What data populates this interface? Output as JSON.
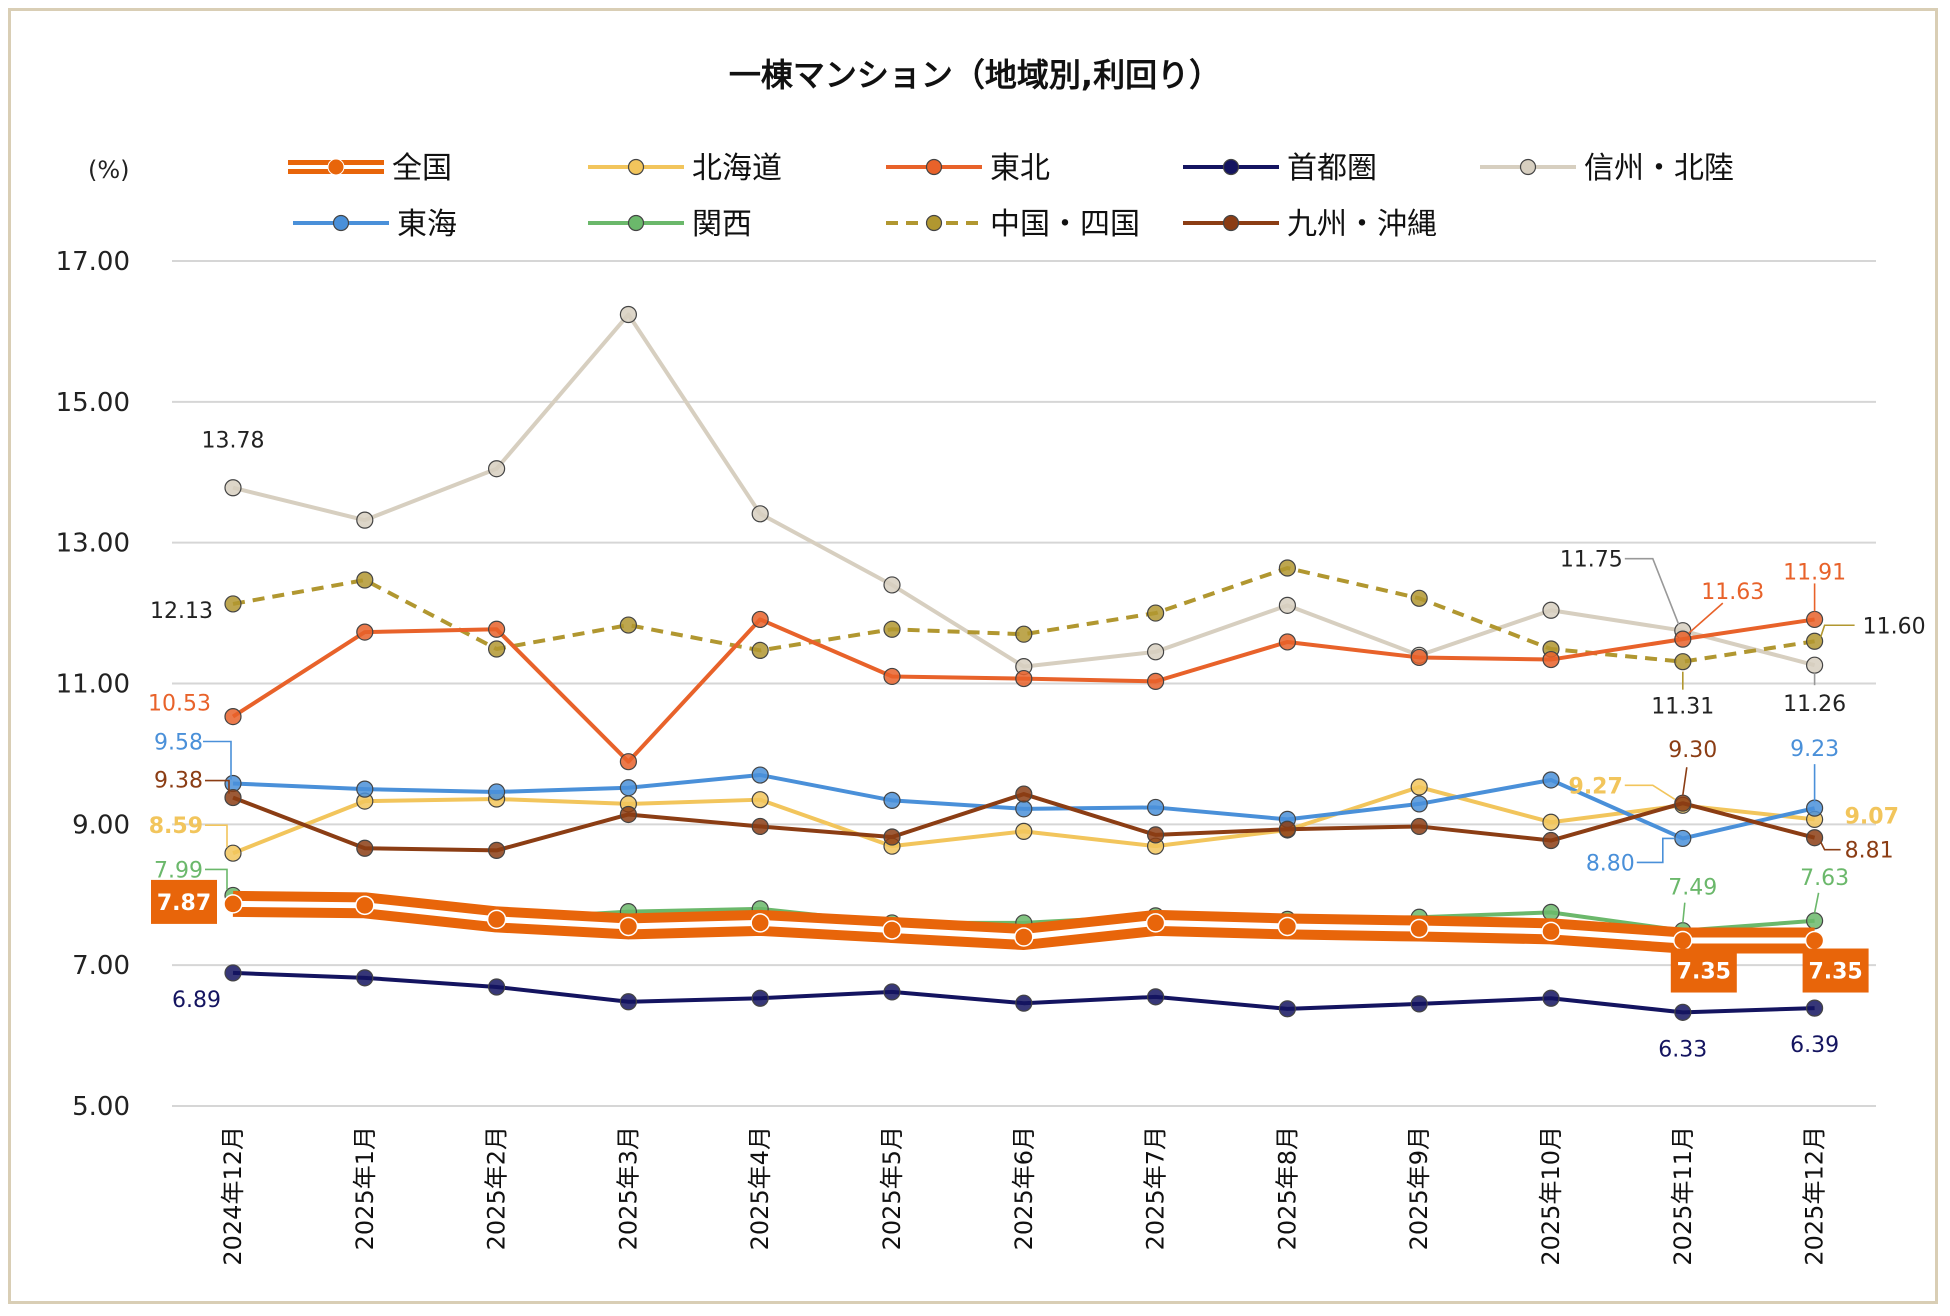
{
  "chart_data": {
    "type": "line",
    "title": "一棟マンション（地域別,利回り）",
    "y_unit_label": "(%)",
    "ylim": [
      5,
      17
    ],
    "yticks": [
      "17.00",
      "15.00",
      "13.00",
      "11.00",
      "9.00",
      "7.00",
      "5.00"
    ],
    "ytick_values": [
      17,
      15,
      13,
      11,
      9,
      7,
      5
    ],
    "grid": true,
    "legend_position": "top",
    "categories": [
      "2024年12月",
      "2025年1月",
      "2025年2月",
      "2025年3月",
      "2025年4月",
      "2025年5月",
      "2025年6月",
      "2025年7月",
      "2025年8月",
      "2025年9月",
      "2025年10月",
      "2025年11月",
      "2025年12月"
    ],
    "series": [
      {
        "name": "全国",
        "color": "#e8650a",
        "style": "double",
        "values": [
          7.87,
          7.85,
          7.65,
          7.55,
          7.6,
          7.5,
          7.4,
          7.6,
          7.55,
          7.52,
          7.48,
          7.35,
          7.35
        ]
      },
      {
        "name": "北海道",
        "color": "#f2c55c",
        "style": "solid",
        "values": [
          8.59,
          9.33,
          9.36,
          9.29,
          9.35,
          8.69,
          8.9,
          8.69,
          8.92,
          9.53,
          9.03,
          9.27,
          9.07
        ]
      },
      {
        "name": "東北",
        "color": "#e8622a",
        "style": "solid",
        "values": [
          10.53,
          11.73,
          11.77,
          9.89,
          11.91,
          11.1,
          11.07,
          11.03,
          11.59,
          11.37,
          11.34,
          11.63,
          11.91
        ]
      },
      {
        "name": "首都圏",
        "color": "#141460",
        "style": "solid",
        "values": [
          6.89,
          6.82,
          6.69,
          6.48,
          6.53,
          6.62,
          6.46,
          6.55,
          6.38,
          6.45,
          6.53,
          6.33,
          6.39
        ]
      },
      {
        "name": "信州・北陸",
        "color": "#d7cfc0",
        "style": "solid",
        "values": [
          13.78,
          13.32,
          14.05,
          16.24,
          13.41,
          12.4,
          11.24,
          11.45,
          12.11,
          11.4,
          12.04,
          11.75,
          11.26
        ]
      },
      {
        "name": "東海",
        "color": "#4a90d9",
        "style": "solid",
        "values": [
          9.58,
          9.5,
          9.46,
          9.52,
          9.7,
          9.34,
          9.22,
          9.24,
          9.07,
          9.29,
          9.63,
          8.8,
          9.23
        ]
      },
      {
        "name": "関西",
        "color": "#6bb86b",
        "style": "solid",
        "values": [
          7.99,
          7.82,
          7.65,
          7.76,
          7.8,
          7.6,
          7.6,
          7.7,
          7.65,
          7.68,
          7.75,
          7.49,
          7.63
        ]
      },
      {
        "name": "中国・四国",
        "color": "#b19730",
        "style": "dashed",
        "values": [
          12.13,
          12.47,
          11.49,
          11.83,
          11.47,
          11.77,
          11.7,
          12.0,
          12.64,
          12.21,
          11.49,
          11.31,
          11.6
        ]
      },
      {
        "name": "九州・沖縄",
        "color": "#8b3d14",
        "style": "solid",
        "values": [
          9.38,
          8.66,
          8.63,
          9.14,
          8.97,
          8.82,
          9.43,
          8.85,
          8.93,
          8.97,
          8.77,
          9.3,
          8.81
        ]
      }
    ],
    "data_labels": [
      {
        "series": "信州・北陸",
        "index": 0,
        "text": "13.78"
      },
      {
        "series": "中国・四国",
        "index": 0,
        "text": "12.13"
      },
      {
        "series": "東北",
        "index": 0,
        "text": "10.53"
      },
      {
        "series": "東海",
        "index": 0,
        "text": "9.58"
      },
      {
        "series": "九州・沖縄",
        "index": 0,
        "text": "9.38"
      },
      {
        "series": "北海道",
        "index": 0,
        "text": "8.59"
      },
      {
        "series": "関西",
        "index": 0,
        "text": "7.99"
      },
      {
        "series": "全国",
        "index": 0,
        "text": "7.87"
      },
      {
        "series": "首都圏",
        "index": 0,
        "text": "6.89"
      },
      {
        "series": "信州・北陸",
        "index": 11,
        "text": "11.75"
      },
      {
        "series": "東北",
        "index": 11,
        "text": "11.63"
      },
      {
        "series": "中国・四国",
        "index": 11,
        "text": "11.31"
      },
      {
        "series": "九州・沖縄",
        "index": 11,
        "text": "9.30"
      },
      {
        "series": "北海道",
        "index": 11,
        "text": "9.27"
      },
      {
        "series": "東海",
        "index": 11,
        "text": "8.80"
      },
      {
        "series": "関西",
        "index": 11,
        "text": "7.49"
      },
      {
        "series": "全国",
        "index": 11,
        "text": "7.35"
      },
      {
        "series": "首都圏",
        "index": 11,
        "text": "6.33"
      },
      {
        "series": "東北",
        "index": 12,
        "text": "11.91"
      },
      {
        "series": "中国・四国",
        "index": 12,
        "text": "11.60"
      },
      {
        "series": "信州・北陸",
        "index": 12,
        "text": "11.26"
      },
      {
        "series": "東海",
        "index": 12,
        "text": "9.23"
      },
      {
        "series": "北海道",
        "index": 12,
        "text": "9.07"
      },
      {
        "series": "九州・沖縄",
        "index": 12,
        "text": "8.81"
      },
      {
        "series": "関西",
        "index": 12,
        "text": "7.63"
      },
      {
        "series": "全国",
        "index": 12,
        "text": "7.35"
      },
      {
        "series": "首都圏",
        "index": 12,
        "text": "6.39"
      }
    ]
  }
}
